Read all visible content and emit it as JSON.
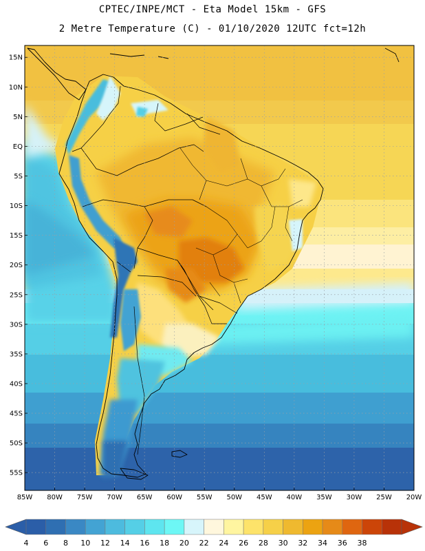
{
  "header": {
    "line1": "CPTEC/INPE/MCT  -   Eta Model 15km  -  GFS",
    "line2": "2 Metre Temperature (C) - 01/10/2020 12UTC fct=12h"
  },
  "map": {
    "lon_range": [
      -85,
      -20
    ],
    "lat_range": [
      -58,
      17
    ],
    "lat_labels": [
      "15N",
      "10N",
      "5N",
      "EQ",
      "5S",
      "10S",
      "15S",
      "20S",
      "25S",
      "30S",
      "35S",
      "40S",
      "45S",
      "50S",
      "55S"
    ],
    "lon_labels": [
      "85W",
      "80W",
      "75W",
      "70W",
      "65W",
      "60W",
      "55W",
      "50W",
      "45W",
      "40W",
      "35W",
      "30W",
      "25W",
      "20W"
    ],
    "gridline_style": "dotted"
  },
  "colorbar": {
    "labels": [
      "4",
      "6",
      "8",
      "10",
      "12",
      "14",
      "16",
      "18",
      "20",
      "22",
      "24",
      "26",
      "28",
      "30",
      "32",
      "34",
      "36",
      "38"
    ],
    "colors": [
      "#2b5ea8",
      "#2f6fb2",
      "#3a88c4",
      "#43a3d3",
      "#4dbbde",
      "#55cfe6",
      "#5ee5ef",
      "#6df7f5",
      "#d7f5fb",
      "#fff7dd",
      "#fff5a0",
      "#fde36a",
      "#f6d048",
      "#efb92f",
      "#eca311",
      "#e68a18",
      "#df6610",
      "#cc4508",
      "#b83208"
    ],
    "left_arrow_color": "#2b5ea8",
    "right_arrow_color": "#b83208"
  }
}
